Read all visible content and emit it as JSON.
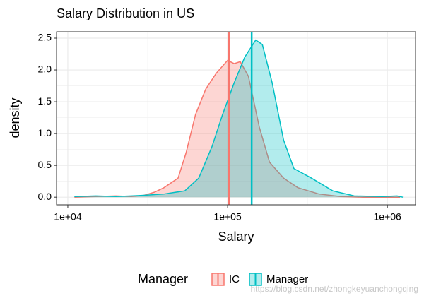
{
  "chart_data": {
    "type": "density",
    "title": "Salary Distribution in US",
    "x_label": "Salary",
    "y_label": "density",
    "log_x": true,
    "grid": true,
    "xlim": [
      8500,
      1500000
    ],
    "xticks": [
      {
        "value": 10000,
        "label": "1e+04"
      },
      {
        "value": 100000,
        "label": "1e+05"
      },
      {
        "value": 1000000,
        "label": "1e+06"
      }
    ],
    "ylim": [
      -0.12,
      2.6
    ],
    "yticks": [
      {
        "value": 0,
        "label": "0.0"
      },
      0.5,
      {
        "value": 1,
        "label": "1.0"
      },
      1.5,
      {
        "value": 2,
        "label": "2.0"
      },
      2.5
    ],
    "legend_title": "Manager",
    "legend_position": "bottom",
    "series": [
      {
        "name": "IC",
        "color": "#F8766D",
        "vline": 102000,
        "x": [
          11000,
          15000,
          20000,
          25000,
          30000,
          35000,
          40000,
          49000,
          55000,
          63000,
          73000,
          85000,
          100000,
          110000,
          120000,
          135000,
          158000,
          183000,
          224000,
          275000,
          373000,
          510000,
          700000,
          1000000,
          1200000
        ],
        "values": [
          0.0,
          0.01,
          0.02,
          0.01,
          0.03,
          0.08,
          0.15,
          0.3,
          0.7,
          1.3,
          1.7,
          1.95,
          2.15,
          2.1,
          2.13,
          1.9,
          1.1,
          0.55,
          0.3,
          0.15,
          0.05,
          0.01,
          0.0,
          0.0,
          0.0
        ]
      },
      {
        "name": "Manager",
        "color": "#00BFC4",
        "vline": 141500,
        "x": [
          11000,
          15000,
          20000,
          25000,
          30000,
          40000,
          54000,
          66000,
          80000,
          93000,
          110000,
          128000,
          150000,
          165000,
          190000,
          224000,
          260000,
          335000,
          455000,
          620000,
          930000,
          1150000,
          1250000
        ],
        "values": [
          0.01,
          0.02,
          0.01,
          0.02,
          0.03,
          0.05,
          0.1,
          0.3,
          0.8,
          1.3,
          1.8,
          2.2,
          2.47,
          2.4,
          1.8,
          0.9,
          0.45,
          0.3,
          0.1,
          0.02,
          0.01,
          0.02,
          0.0
        ]
      }
    ],
    "watermark": "https://blog.csdn.net/zhongkeyuanchongqing"
  }
}
